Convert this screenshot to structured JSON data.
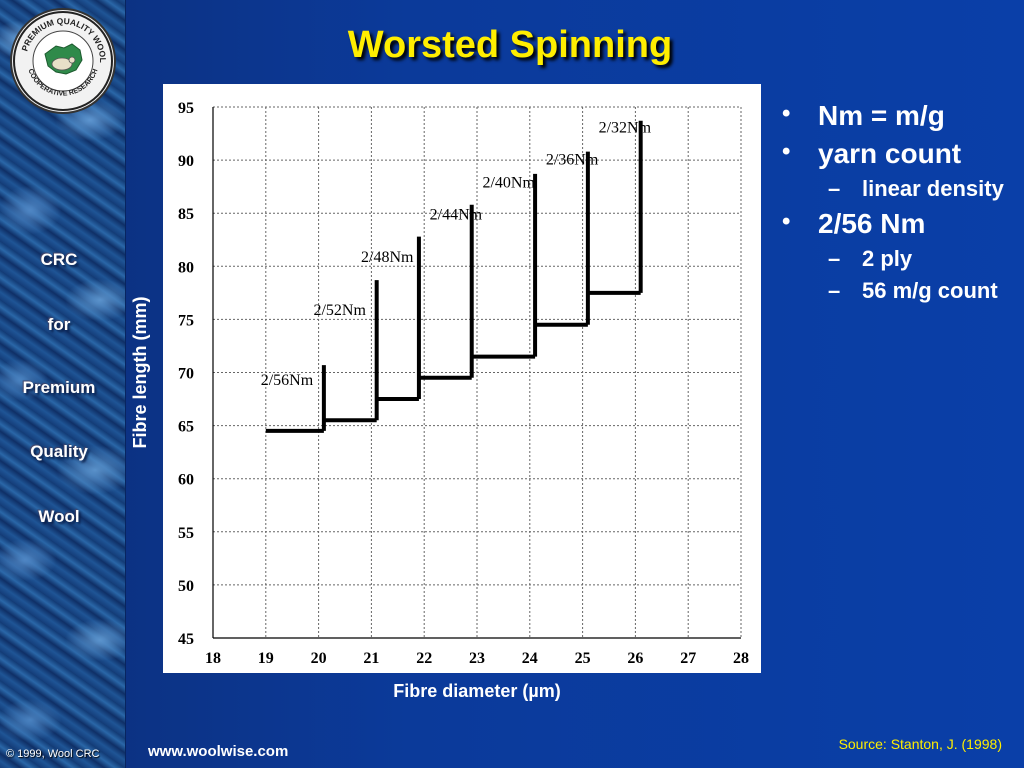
{
  "slide": {
    "title": "Worsted Spinning",
    "sidebar_words": [
      "CRC",
      "for",
      "Premium",
      "Quality",
      "Wool"
    ],
    "logo_text": "PREMIUM QUALITY WOOL COOPERATIVE RESEARCH CENTRE",
    "copyright": "© 1999, Wool CRC",
    "url": "www.woolwise.com",
    "source": "Source: Stanton, J. (1998)"
  },
  "bullets": [
    {
      "text": "Nm = m/g",
      "sub": []
    },
    {
      "text": "yarn count",
      "sub": [
        "linear density"
      ]
    },
    {
      "text": "2/56 Nm",
      "sub": [
        "2 ply",
        "56 m/g count"
      ]
    }
  ],
  "colors": {
    "title": "#ffee00",
    "source": "#ffee00",
    "plot_bg": "#ffffff",
    "line": "#000000"
  },
  "chart_data": {
    "type": "line",
    "xlabel": "Fibre diameter (µm)",
    "ylabel": "Fibre length (mm)",
    "xlim": [
      18,
      28
    ],
    "ylim": [
      45,
      95
    ],
    "x_ticks": [
      18,
      19,
      20,
      21,
      22,
      23,
      24,
      25,
      26,
      27,
      28
    ],
    "y_ticks": [
      45,
      50,
      55,
      60,
      65,
      70,
      75,
      80,
      85,
      90,
      95
    ],
    "grid": true,
    "step_segments": [
      {
        "name": "2/56Nm",
        "x_start": 19,
        "x_end": 20.1,
        "y_level": 64.5,
        "y_top": 70.7
      },
      {
        "name": "2/52Nm",
        "x_start": 20.1,
        "x_end": 21.1,
        "y_level": 65.5,
        "y_top": 78.7
      },
      {
        "name": "2/48Nm",
        "x_start": 21.1,
        "x_end": 21.9,
        "y_level": 67.5,
        "y_top": 82.8
      },
      {
        "name": "2/44Nm",
        "x_start": 21.9,
        "x_end": 22.9,
        "y_level": 69.5,
        "y_top": 85.8
      },
      {
        "name": "2/40Nm",
        "x_start": 22.9,
        "x_end": 24.1,
        "y_level": 71.5,
        "y_top": 88.7
      },
      {
        "name": "2/36Nm",
        "x_start": 24.1,
        "x_end": 25.1,
        "y_level": 74.5,
        "y_top": 90.8
      },
      {
        "name": "2/32Nm",
        "x_start": 25.1,
        "x_end": 26.1,
        "y_level": 77.5,
        "y_top": 93.7
      }
    ],
    "annotations": [
      {
        "text": "2/56Nm",
        "x": 19.4,
        "y": 68.8
      },
      {
        "text": "2/52Nm",
        "x": 20.4,
        "y": 75.4
      },
      {
        "text": "2/48Nm",
        "x": 21.3,
        "y": 80.4
      },
      {
        "text": "2/44Nm",
        "x": 22.6,
        "y": 84.4
      },
      {
        "text": "2/40Nm",
        "x": 23.6,
        "y": 87.4
      },
      {
        "text": "2/36Nm",
        "x": 24.8,
        "y": 89.6
      },
      {
        "text": "2/32Nm",
        "x": 25.8,
        "y": 92.6
      }
    ]
  }
}
